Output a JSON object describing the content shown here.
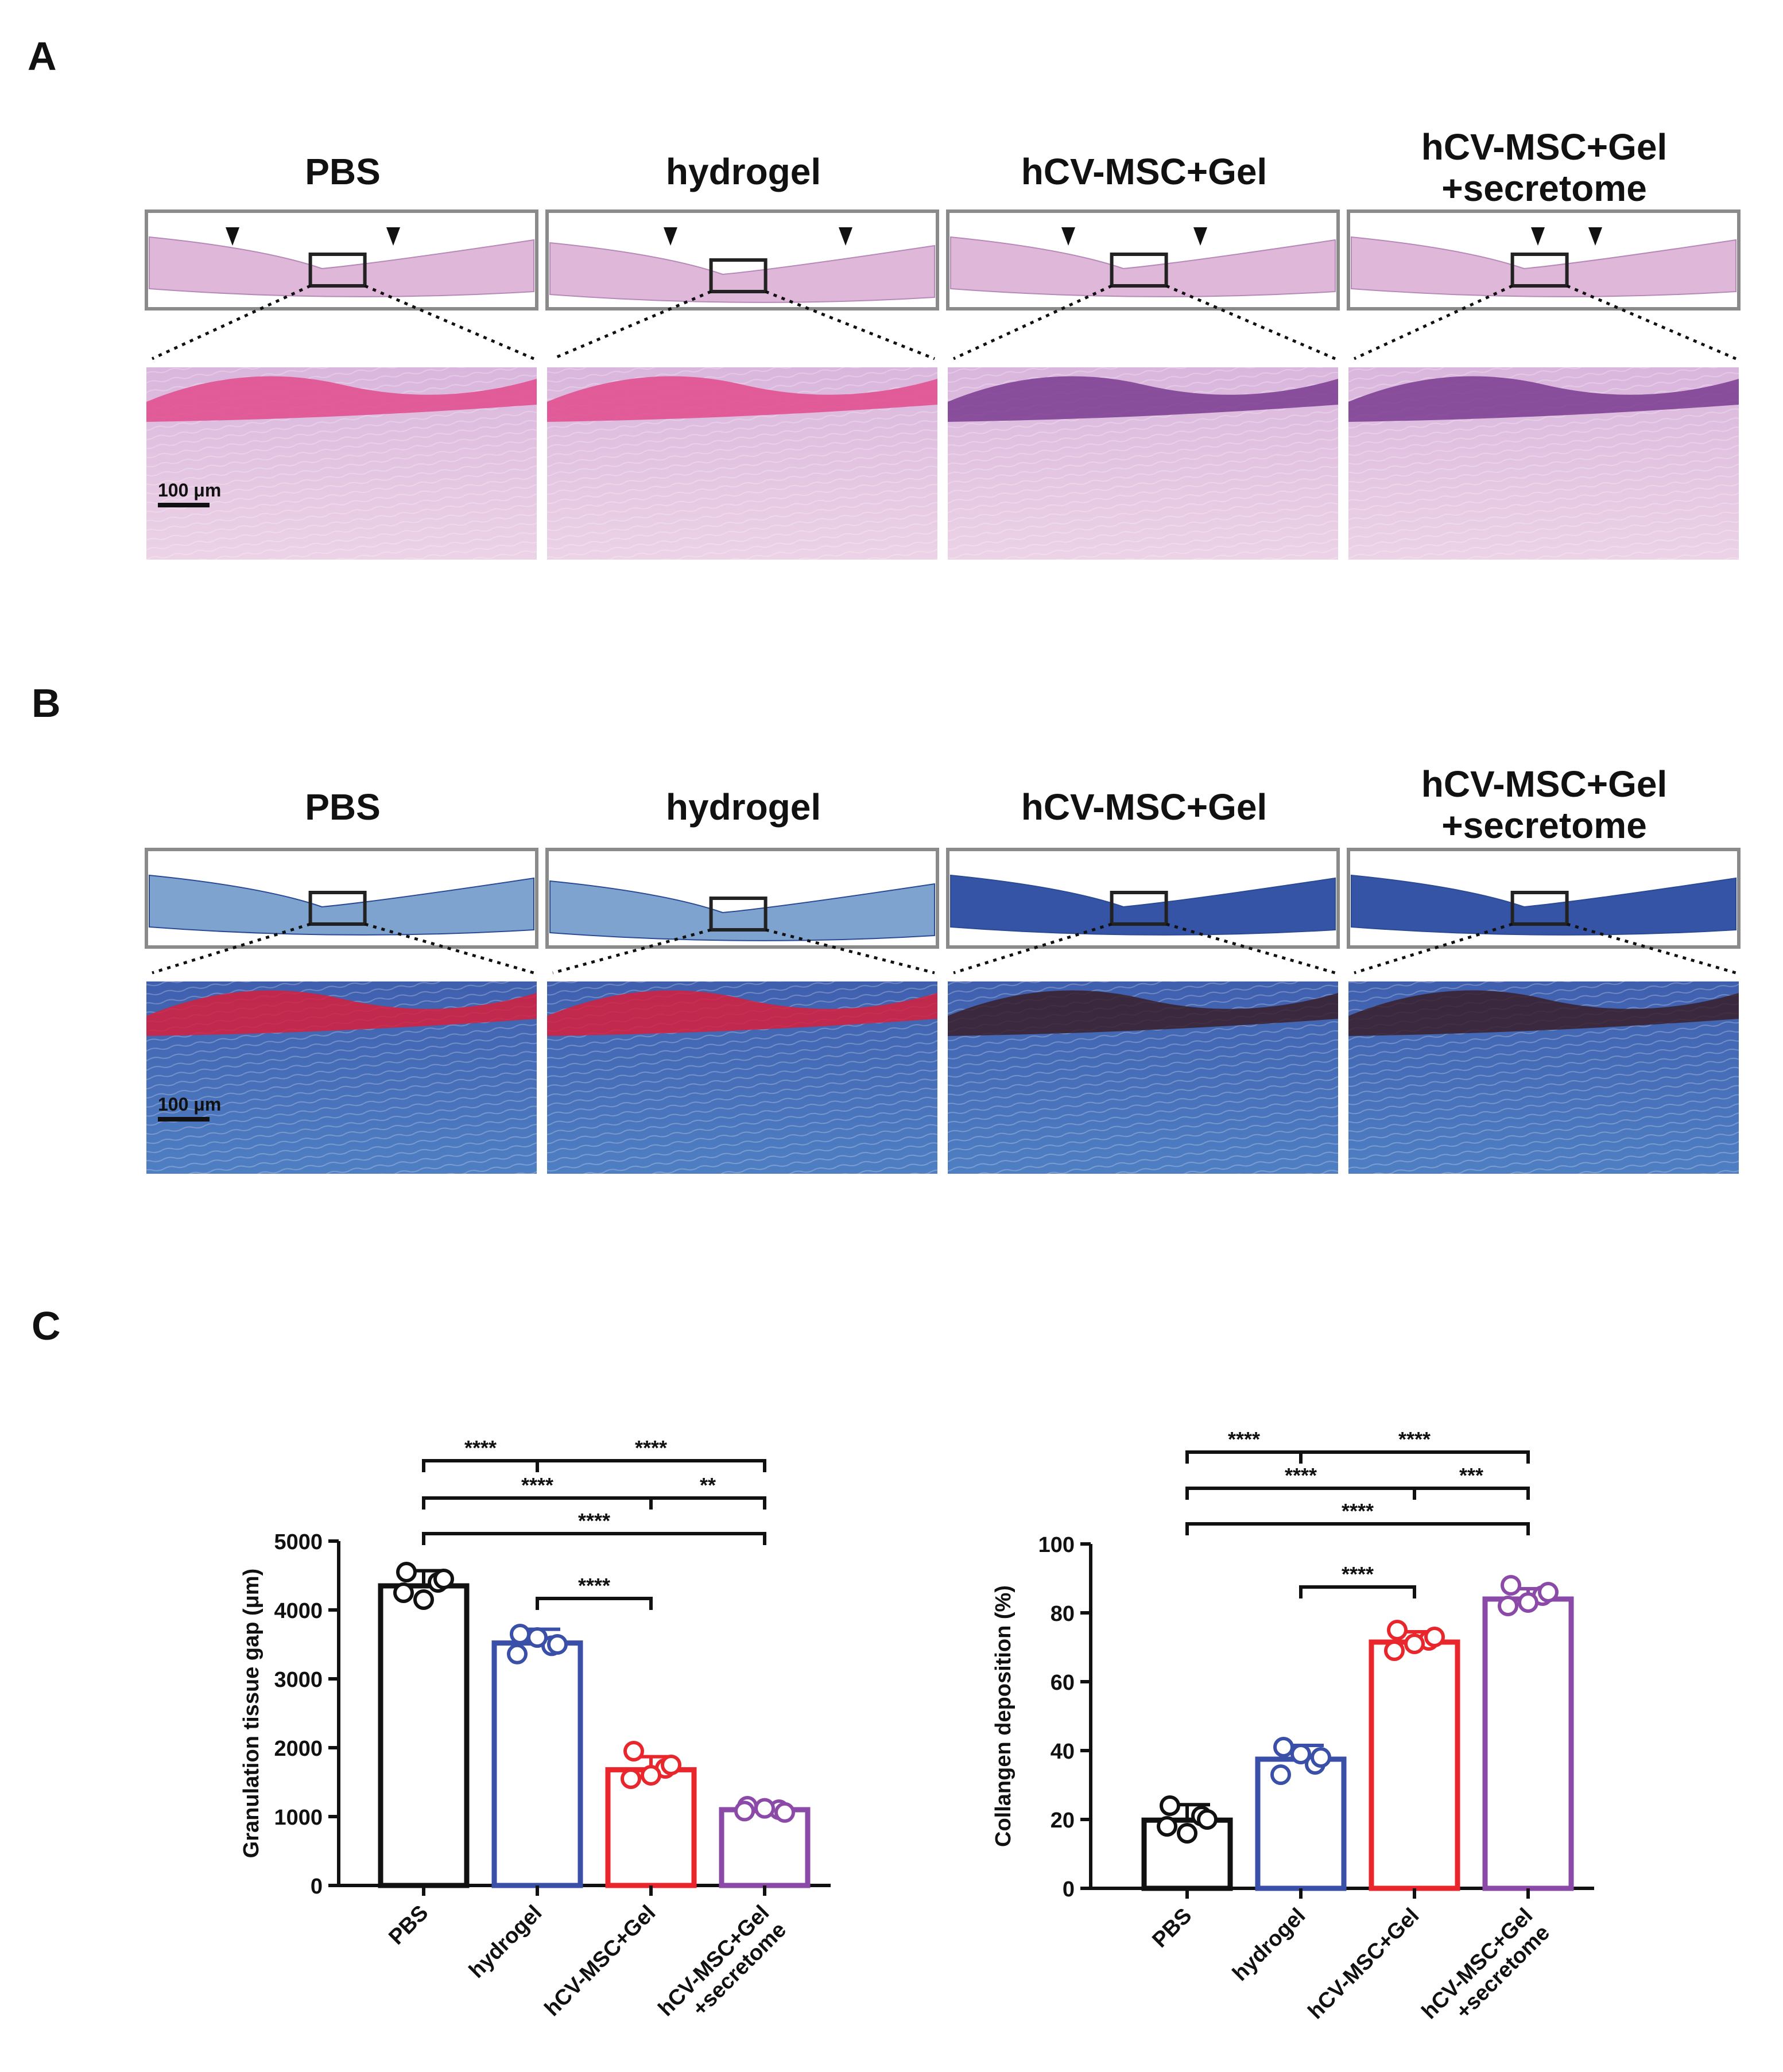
{
  "panels": {
    "a": {
      "letter": "A",
      "columns": [
        "PBS",
        "hydrogel",
        "hCV-MSC+Gel",
        "hCV-MSC+Gel\n+secretome"
      ],
      "scale_bar": "100 μm"
    },
    "b": {
      "letter": "B",
      "columns": [
        "PBS",
        "hydrogel",
        "hCV-MSC+Gel",
        "hCV-MSC+Gel\n+secretome"
      ],
      "scale_bar": "100 μm"
    },
    "c": {
      "letter": "C"
    }
  },
  "colors": {
    "PBS": "#111111",
    "hydrogel": "#3a4fa8",
    "hCV-MSC+Gel": "#e8262c",
    "hCV-MSC+Gel +secretome": "#8b4aa8",
    "he_stain": "#e2b3d6",
    "trichrome_stain": "#5a86c4"
  },
  "chart_data": [
    {
      "type": "bar",
      "categories": [
        "PBS",
        "hydrogel",
        "hCV-MSC+Gel",
        "hCV-MSC+Gel\n+secretome"
      ],
      "values": [
        4350,
        3520,
        1680,
        1100
      ],
      "errors": [
        220,
        200,
        190,
        60
      ],
      "points": [
        [
          4550,
          4400,
          4250,
          4150,
          4450
        ],
        [
          3650,
          3480,
          3360,
          3600,
          3500
        ],
        [
          1950,
          1700,
          1550,
          1600,
          1750
        ],
        [
          1150,
          1100,
          1080,
          1120,
          1060
        ]
      ],
      "ylabel": "Granulation tissue gap (μm)",
      "ylim": [
        0,
        5000
      ],
      "yticks": [
        0,
        1000,
        2000,
        3000,
        4000,
        5000
      ],
      "significance": [
        {
          "from": 0,
          "to": 1,
          "label": "****"
        },
        {
          "from": 1,
          "to": 3,
          "label": "****"
        },
        {
          "from": 0,
          "to": 2,
          "label": "****"
        },
        {
          "from": 2,
          "to": 3,
          "label": "**"
        },
        {
          "from": 0,
          "to": 3,
          "label": "****"
        },
        {
          "from": 1,
          "to": 2,
          "label": "****"
        }
      ]
    },
    {
      "type": "bar",
      "categories": [
        "PBS",
        "hydrogel",
        "hCV-MSC+Gel",
        "hCV-MSC+Gel\n+secretome"
      ],
      "values": [
        19.8,
        37.5,
        71.5,
        84
      ],
      "errors": [
        4.5,
        4,
        3,
        3
      ],
      "points": [
        [
          24,
          21,
          18,
          16,
          20
        ],
        [
          41,
          36,
          33,
          39,
          38
        ],
        [
          75,
          72,
          69,
          71,
          73
        ],
        [
          88,
          85,
          82,
          83,
          86
        ]
      ],
      "ylabel": "Collangen deposition (%)",
      "ylim": [
        0,
        100
      ],
      "yticks": [
        0,
        20,
        40,
        60,
        80,
        100
      ],
      "significance": [
        {
          "from": 0,
          "to": 1,
          "label": "****"
        },
        {
          "from": 1,
          "to": 3,
          "label": "****"
        },
        {
          "from": 0,
          "to": 2,
          "label": "****"
        },
        {
          "from": 2,
          "to": 3,
          "label": "***"
        },
        {
          "from": 0,
          "to": 3,
          "label": "****"
        },
        {
          "from": 1,
          "to": 2,
          "label": "****"
        }
      ]
    }
  ]
}
